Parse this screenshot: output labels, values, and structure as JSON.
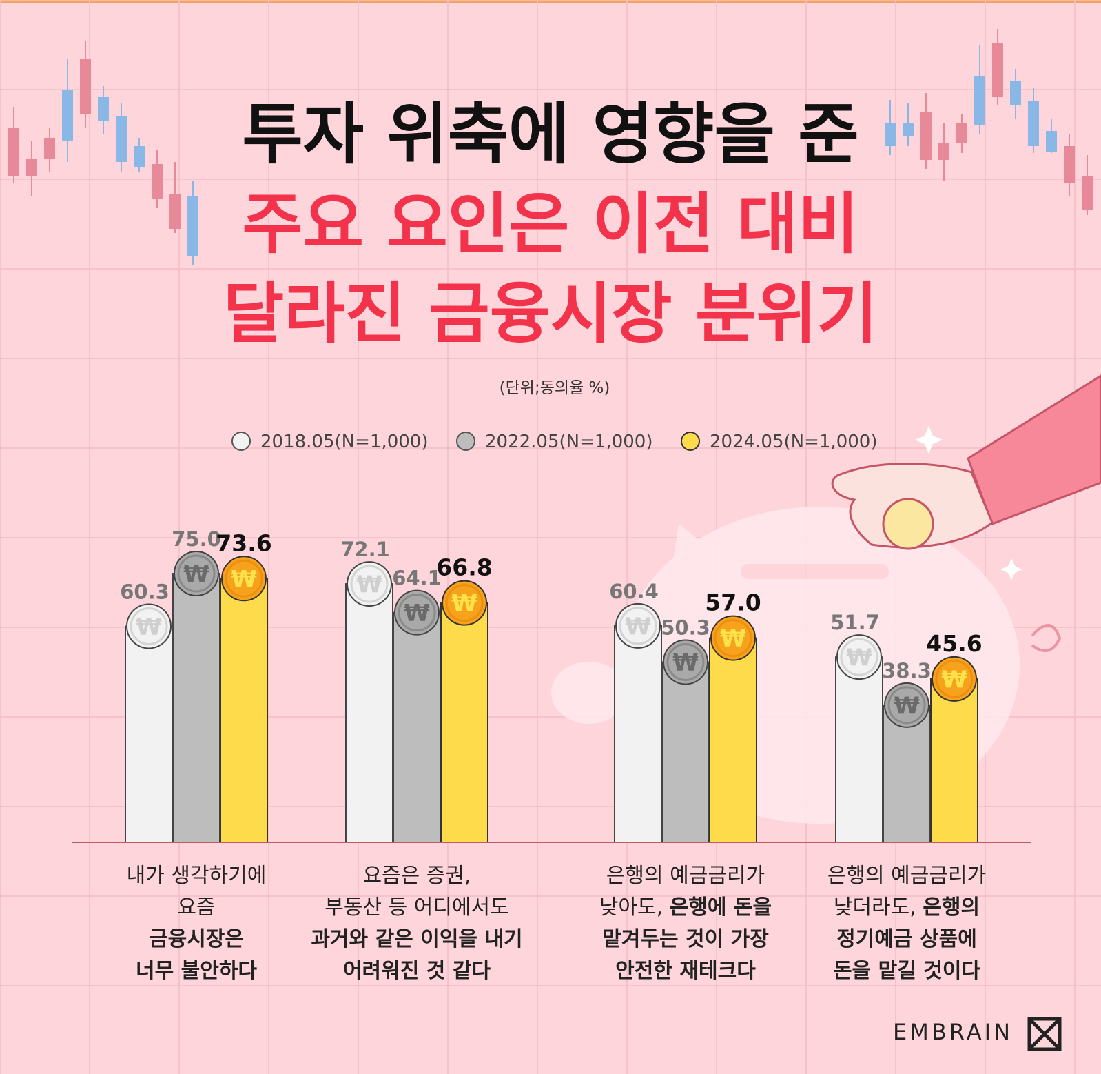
{
  "title": {
    "line1": "투자 위축에 영향을 준",
    "line2": "주요 요인은 이전 대비",
    "line3": "달라진 금융시장 분위기"
  },
  "unit_note": "(단위;동의율 %)",
  "brand": {
    "name": "EMBRAIN"
  },
  "colors": {
    "background": "#fdd5da",
    "title_black": "#111111",
    "title_red": "#f2334b",
    "bar_2018": "#f2f2f2",
    "bar_2022": "#bdbdbd",
    "bar_2024": "#fddb4b",
    "coin_2024": "#f7a21c"
  },
  "chart_data": {
    "type": "bar",
    "ylim": [
      0,
      100
    ],
    "categories": [
      [
        "내가 생각하기에",
        "요즘",
        "금융시장은",
        "너무 불안하다"
      ],
      [
        "요즘은 증권,",
        "부동산 등 어디에서도",
        "과거와 같은 이익을 내기",
        "어려워진 것 같다"
      ],
      [
        "은행의 예금금리가",
        "낮아도, 은행에 돈을",
        "맡겨두는 것이 가장",
        "안전한 재테크다"
      ],
      [
        "은행의 예금금리가",
        "낮더라도, 은행의",
        "정기예금 상품에",
        "돈을 맡길 것이다"
      ]
    ],
    "series": [
      {
        "name": "2018.05(N=1,000)",
        "values": [
          60.3,
          72.1,
          60.4,
          51.7
        ]
      },
      {
        "name": "2022.05(N=1,000)",
        "values": [
          75.0,
          64.1,
          50.3,
          38.3
        ]
      },
      {
        "name": "2024.05(N=1,000)",
        "values": [
          73.6,
          66.8,
          57.0,
          45.6
        ]
      }
    ],
    "value_labels": [
      [
        "60.3",
        "72.1",
        "60.4",
        "51.7"
      ],
      [
        "75.0",
        "64.1",
        "50.3",
        "38.3"
      ],
      [
        "73.6",
        "66.8",
        "57.0",
        "45.6"
      ]
    ],
    "legend_position": "top-center",
    "coin_symbol": "₩"
  }
}
